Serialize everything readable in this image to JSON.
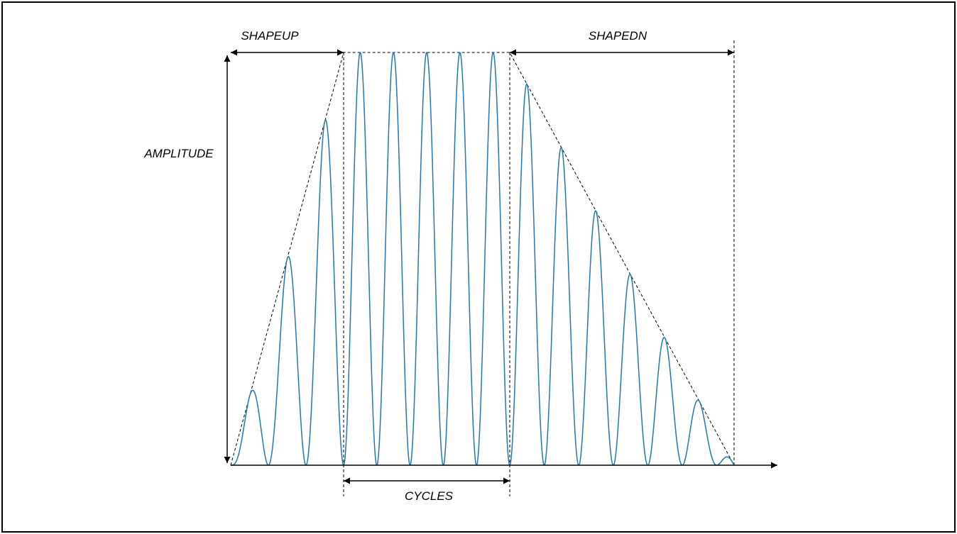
{
  "labels": {
    "shapeup": "SHAPEUP",
    "shapedn": "SHAPEDN",
    "amplitude": "AMPLITUDE",
    "cycles": "CYCLES"
  },
  "colors": {
    "waveform": "#1f77b4",
    "lines": "#000000",
    "background": "#ffffff"
  },
  "waveform": {
    "ramp_up_cycles": 3,
    "full_amplitude_cycles": 5,
    "ramp_down_cycles": 6.5
  }
}
